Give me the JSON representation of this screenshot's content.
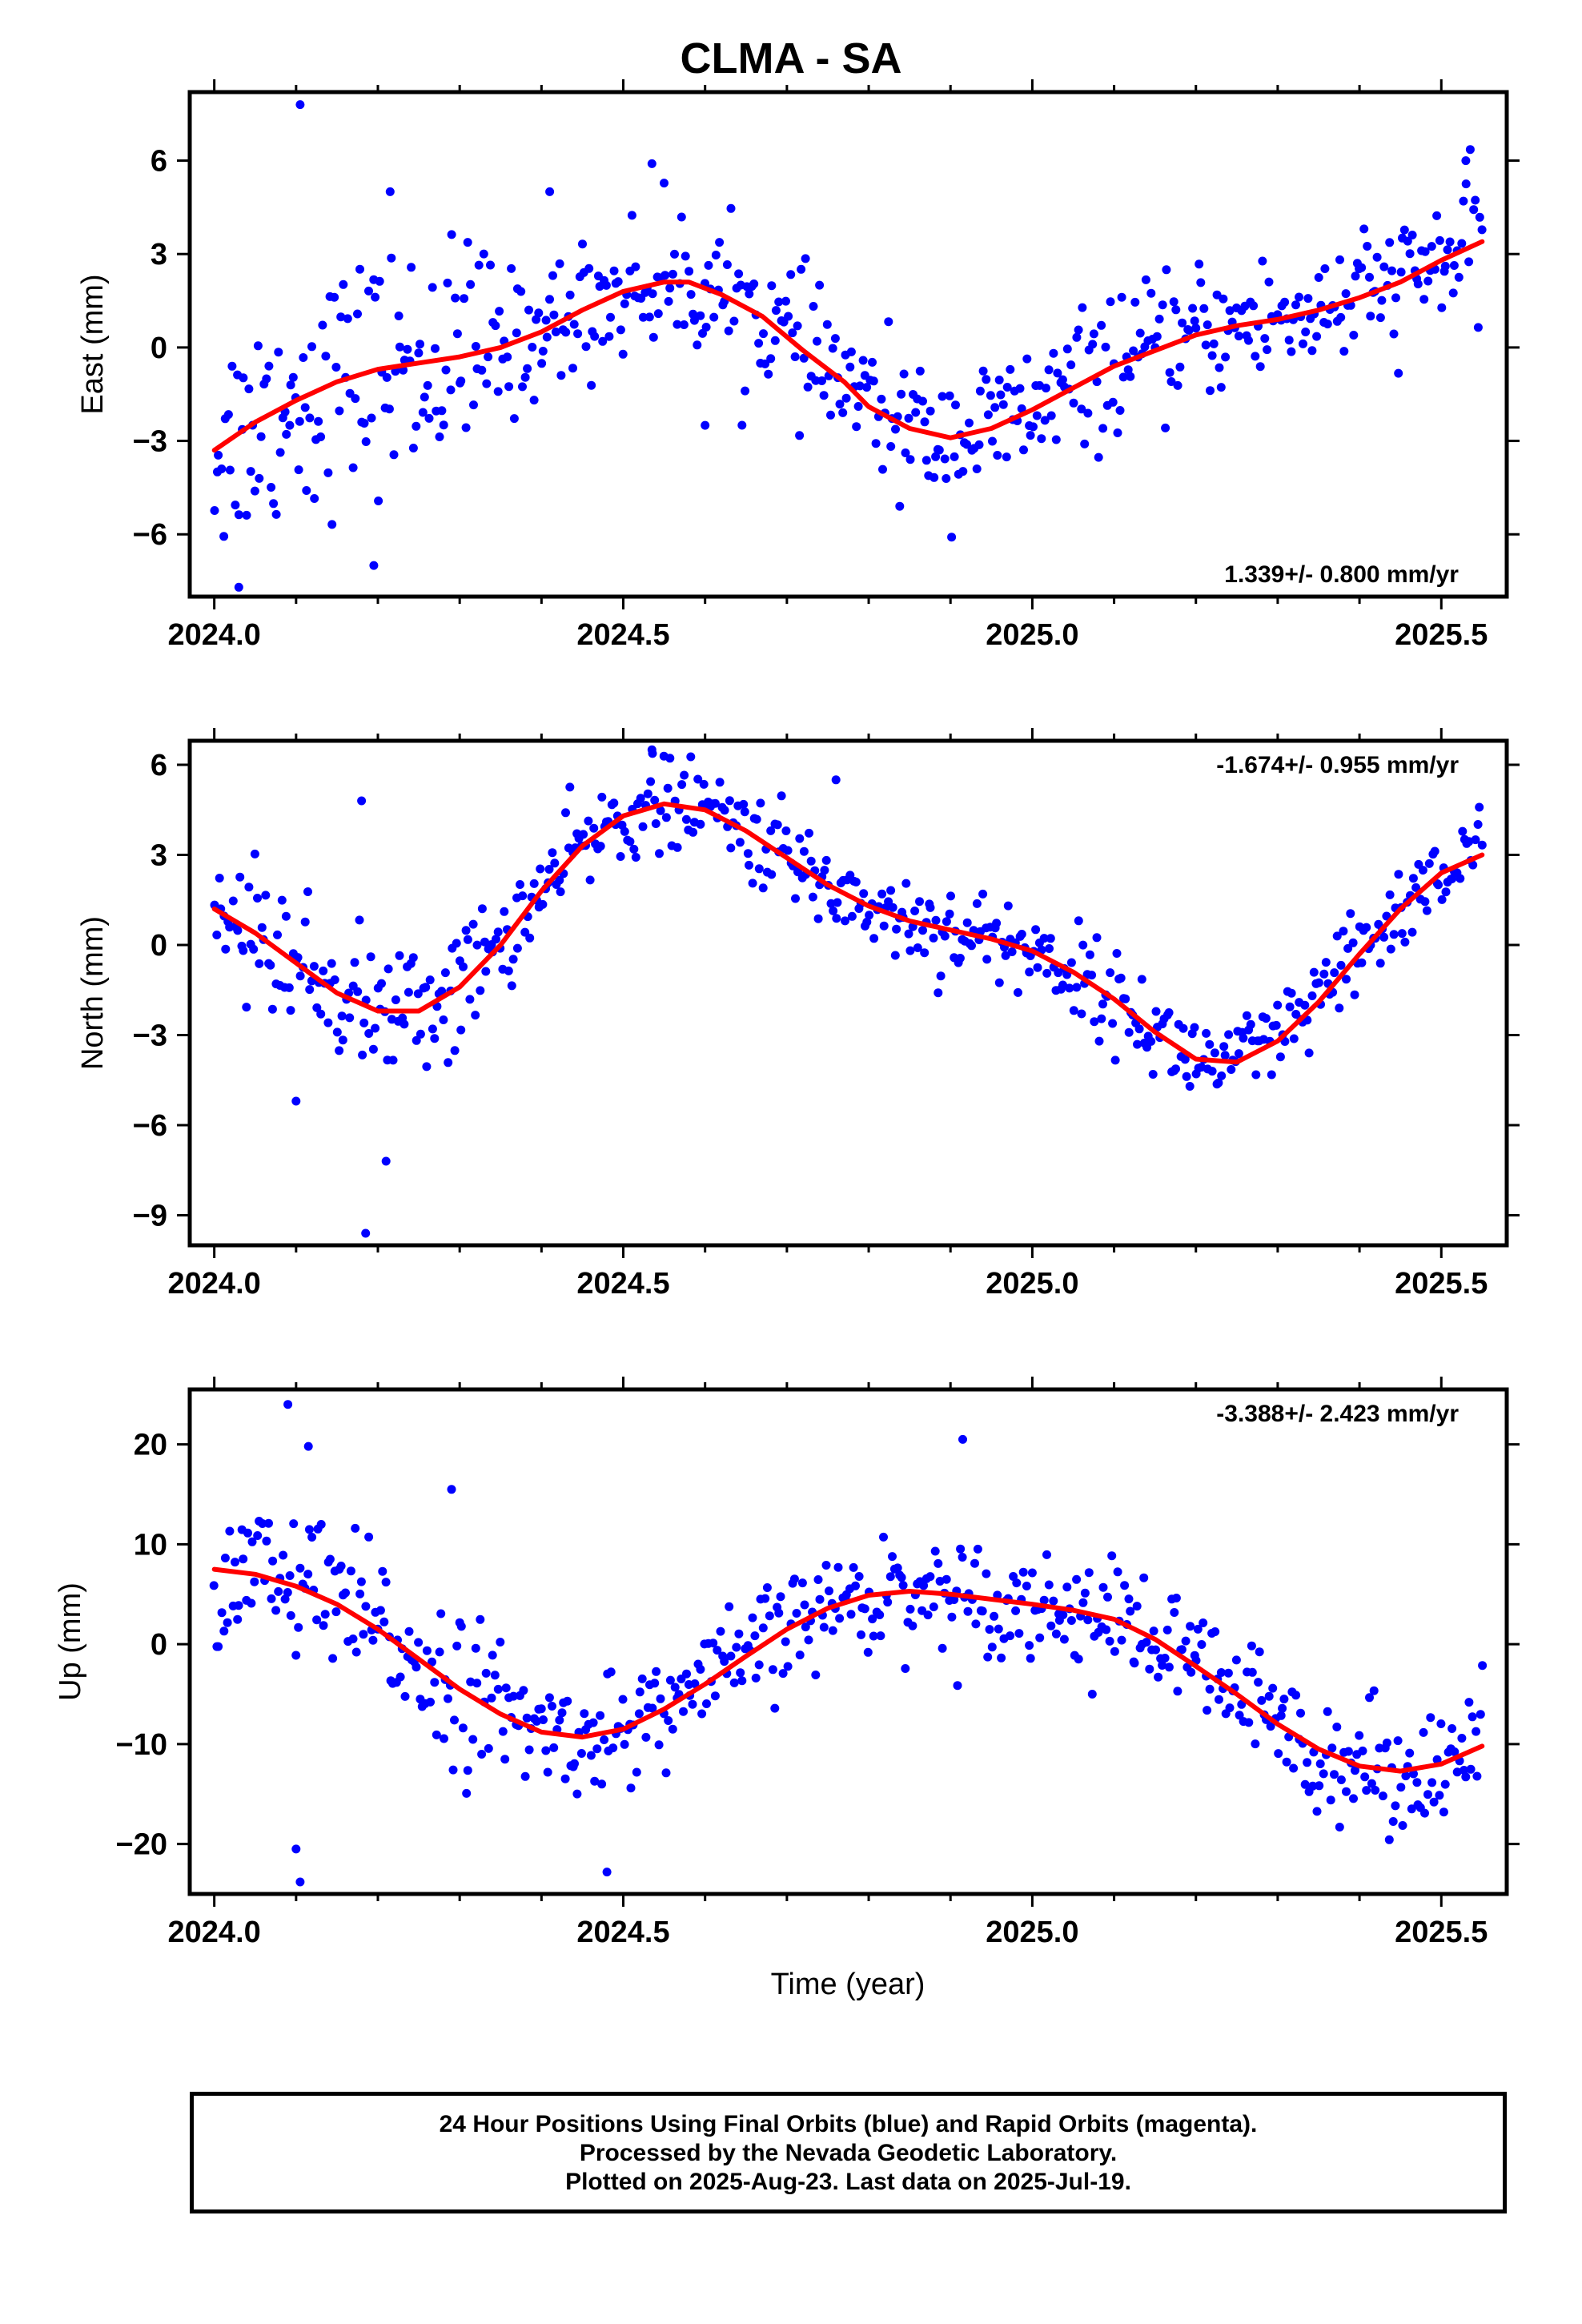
{
  "title": "CLMA - SA",
  "xlabel": "Time (year)",
  "footer": [
    "24 Hour Positions Using Final Orbits (blue) and Rapid Orbits (magenta).",
    "Processed by the Nevada Geodetic Laboratory.",
    "Plotted on 2025-Aug-23. Last data on 2025-Jul-19."
  ],
  "colors": {
    "final_orbits": "#0000ff",
    "rapid_orbits": "#ff00ff",
    "model": "#ff0000"
  },
  "chart_data": [
    {
      "type": "scatter",
      "component": "east",
      "ylabel": "East (mm)",
      "velocity": "1.339+/- 0.800 mm/yr",
      "velocity_position": "bottom-right",
      "xlim": [
        2023.97,
        2025.58
      ],
      "ylim": [
        -8,
        8.2
      ],
      "xticks": [
        "2024.0",
        "2024.5",
        "2025.0",
        "2025.5"
      ],
      "yticks": [
        6,
        3,
        0,
        -3,
        -6
      ],
      "grid": false,
      "model_fit": [
        [
          2024.0,
          -3.3
        ],
        [
          2024.05,
          -2.4
        ],
        [
          2024.1,
          -1.7
        ],
        [
          2024.15,
          -1.1
        ],
        [
          2024.2,
          -0.7
        ],
        [
          2024.25,
          -0.5
        ],
        [
          2024.3,
          -0.3
        ],
        [
          2024.35,
          0.0
        ],
        [
          2024.4,
          0.5
        ],
        [
          2024.45,
          1.2
        ],
        [
          2024.5,
          1.8
        ],
        [
          2024.55,
          2.1
        ],
        [
          2024.58,
          2.1
        ],
        [
          2024.62,
          1.7
        ],
        [
          2024.67,
          1.0
        ],
        [
          2024.72,
          -0.1
        ],
        [
          2024.77,
          -1.1
        ],
        [
          2024.8,
          -1.9
        ],
        [
          2024.85,
          -2.6
        ],
        [
          2024.9,
          -2.9
        ],
        [
          2024.95,
          -2.6
        ],
        [
          2025.0,
          -2.0
        ],
        [
          2025.05,
          -1.3
        ],
        [
          2025.1,
          -0.6
        ],
        [
          2025.15,
          -0.1
        ],
        [
          2025.2,
          0.4
        ],
        [
          2025.25,
          0.7
        ],
        [
          2025.3,
          0.9
        ],
        [
          2025.35,
          1.2
        ],
        [
          2025.4,
          1.6
        ],
        [
          2025.45,
          2.1
        ],
        [
          2025.5,
          2.8
        ],
        [
          2025.55,
          3.4
        ]
      ],
      "outliers": [
        [
          2024.03,
          -7.7
        ],
        [
          2024.105,
          7.8
        ],
        [
          2024.195,
          -7.0
        ],
        [
          2024.215,
          5.0
        ],
        [
          2024.535,
          5.9
        ],
        [
          2024.6,
          -2.5
        ],
        [
          2024.41,
          5.0
        ],
        [
          2025.53,
          6.0
        ]
      ],
      "scatter_sd": [
        2.2,
        1.3,
        1.2
      ]
    },
    {
      "type": "scatter",
      "component": "north",
      "ylabel": "North (mm)",
      "velocity": "-1.674+/- 0.955 mm/yr",
      "velocity_position": "top-right",
      "xlim": [
        2023.97,
        2025.58
      ],
      "ylim": [
        -10,
        6.8
      ],
      "xticks": [
        "2024.0",
        "2024.5",
        "2025.0",
        "2025.5"
      ],
      "yticks": [
        6,
        3,
        0,
        -3,
        -6,
        -9
      ],
      "grid": false,
      "model_fit": [
        [
          2024.0,
          1.2
        ],
        [
          2024.05,
          0.4
        ],
        [
          2024.1,
          -0.6
        ],
        [
          2024.15,
          -1.6
        ],
        [
          2024.2,
          -2.2
        ],
        [
          2024.25,
          -2.2
        ],
        [
          2024.3,
          -1.4
        ],
        [
          2024.35,
          0.0
        ],
        [
          2024.4,
          1.8
        ],
        [
          2024.45,
          3.3
        ],
        [
          2024.5,
          4.3
        ],
        [
          2024.55,
          4.7
        ],
        [
          2024.6,
          4.5
        ],
        [
          2024.65,
          3.8
        ],
        [
          2024.7,
          2.9
        ],
        [
          2024.75,
          2.0
        ],
        [
          2024.8,
          1.3
        ],
        [
          2024.85,
          0.8
        ],
        [
          2024.9,
          0.5
        ],
        [
          2024.95,
          0.2
        ],
        [
          2025.0,
          -0.2
        ],
        [
          2025.05,
          -0.9
        ],
        [
          2025.1,
          -1.8
        ],
        [
          2025.15,
          -2.9
        ],
        [
          2025.2,
          -3.8
        ],
        [
          2025.25,
          -3.9
        ],
        [
          2025.3,
          -3.2
        ],
        [
          2025.35,
          -1.9
        ],
        [
          2025.4,
          -0.3
        ],
        [
          2025.45,
          1.2
        ],
        [
          2025.5,
          2.4
        ],
        [
          2025.55,
          3.0
        ]
      ],
      "outliers": [
        [
          2024.18,
          4.8
        ],
        [
          2024.185,
          -9.6
        ],
        [
          2024.21,
          -7.2
        ],
        [
          2024.1,
          -5.2
        ],
        [
          2024.535,
          6.5
        ],
        [
          2024.76,
          5.5
        ]
      ],
      "scatter_sd": [
        1.3,
        0.9,
        0.9
      ]
    },
    {
      "type": "scatter",
      "component": "up",
      "ylabel": "Up (mm)",
      "velocity": "-3.388+/- 2.423 mm/yr",
      "velocity_position": "top-right",
      "xlim": [
        2023.97,
        2025.58
      ],
      "ylim": [
        -25,
        25.5
      ],
      "xticks": [
        "2024.0",
        "2024.5",
        "2025.0",
        "2025.5"
      ],
      "yticks": [
        20,
        10,
        0,
        -10,
        -20
      ],
      "grid": false,
      "model_fit": [
        [
          2024.0,
          7.5
        ],
        [
          2024.05,
          7.0
        ],
        [
          2024.1,
          5.8
        ],
        [
          2024.15,
          4.0
        ],
        [
          2024.2,
          1.5
        ],
        [
          2024.25,
          -1.5
        ],
        [
          2024.3,
          -4.5
        ],
        [
          2024.35,
          -7.0
        ],
        [
          2024.4,
          -8.8
        ],
        [
          2024.45,
          -9.3
        ],
        [
          2024.5,
          -8.5
        ],
        [
          2024.55,
          -6.5
        ],
        [
          2024.6,
          -4.0
        ],
        [
          2024.65,
          -1.2
        ],
        [
          2024.7,
          1.5
        ],
        [
          2024.75,
          3.6
        ],
        [
          2024.8,
          4.9
        ],
        [
          2024.85,
          5.3
        ],
        [
          2024.9,
          5.0
        ],
        [
          2024.95,
          4.5
        ],
        [
          2025.0,
          4.0
        ],
        [
          2025.05,
          3.4
        ],
        [
          2025.1,
          2.5
        ],
        [
          2025.15,
          0.5
        ],
        [
          2025.2,
          -2.2
        ],
        [
          2025.25,
          -5.0
        ],
        [
          2025.3,
          -8.0
        ],
        [
          2025.35,
          -10.5
        ],
        [
          2025.4,
          -12.2
        ],
        [
          2025.45,
          -12.7
        ],
        [
          2025.5,
          -12.0
        ],
        [
          2025.55,
          -10.2
        ]
      ],
      "outliers": [
        [
          2024.09,
          24.0
        ],
        [
          2024.1,
          -20.5
        ],
        [
          2024.105,
          -23.8
        ],
        [
          2024.115,
          19.8
        ],
        [
          2024.48,
          -22.8
        ],
        [
          2024.915,
          20.5
        ],
        [
          2024.29,
          15.5
        ]
      ],
      "scatter_sd": [
        4.5,
        3.2,
        3.5
      ]
    }
  ]
}
